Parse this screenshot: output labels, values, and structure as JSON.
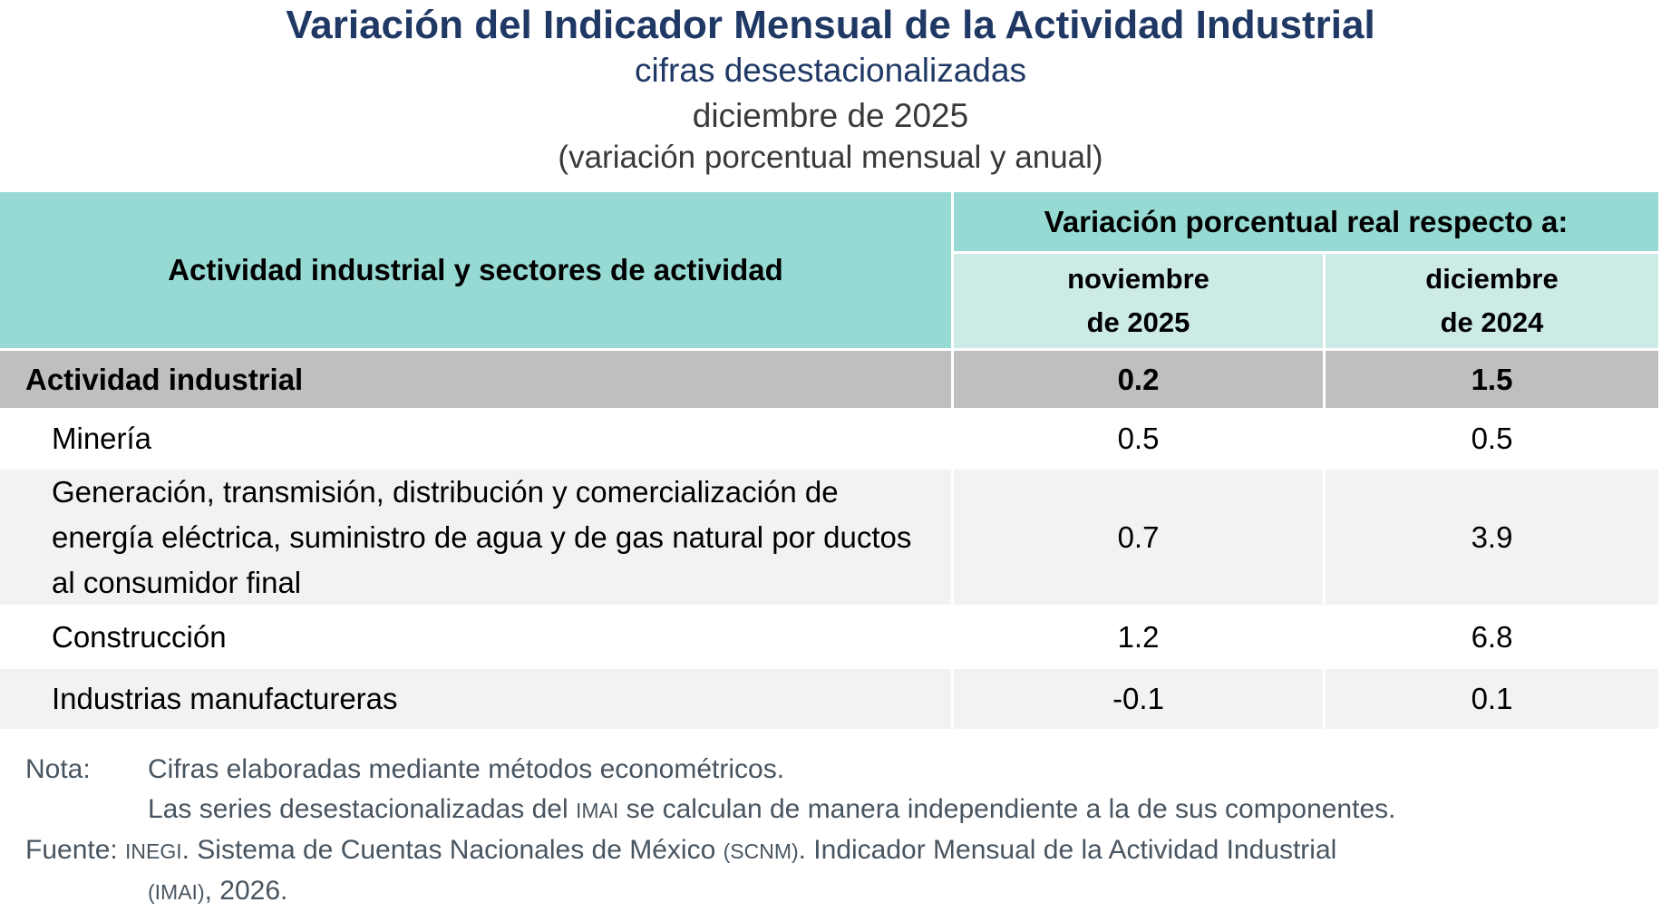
{
  "title": {
    "main": "Variación del Indicador Mensual de la Actividad Industrial",
    "subtitle": "cifras desestacionalizadas",
    "period": "diciembre de 2025",
    "measure": "(variación porcentual mensual y anual)"
  },
  "table": {
    "stub_header": "Actividad industrial y sectores de actividad",
    "group_header": "Variación porcentual real respecto a:",
    "col_headers": [
      {
        "line1": "noviembre",
        "line2": "de 2025"
      },
      {
        "line1": "diciembre",
        "line2": "de 2024"
      }
    ],
    "rows": [
      {
        "label": "Actividad industrial",
        "vs_prev_month": "0.2",
        "vs_prev_year": "1.5"
      },
      {
        "label": "Minería",
        "vs_prev_month": "0.5",
        "vs_prev_year": "0.5"
      },
      {
        "label": "Generación, transmisión, distribución y comercialización de energía eléctrica, suministro de agua y de gas natural por ductos al consumidor final",
        "vs_prev_month": "0.7",
        "vs_prev_year": "3.9"
      },
      {
        "label": "Construcción",
        "vs_prev_month": "1.2",
        "vs_prev_year": "6.8"
      },
      {
        "label": "Industrias manufactureras",
        "vs_prev_month": "-0.1",
        "vs_prev_year": "0.1"
      }
    ]
  },
  "notes": {
    "nota_label": "Nota:",
    "nota_line1": "Cifras elaboradas mediante métodos econométricos.",
    "nota_line2_segments": [
      "Las series desestacionalizadas del ",
      {
        "sc": "IMAI"
      },
      " se calculan de manera independiente a la de sus componentes."
    ],
    "fuente_label": "Fuente:",
    "fuente_line1_segments": [
      {
        "sc": "INEGI"
      },
      ". Sistema de Cuentas Nacionales de México ",
      {
        "sc": "(SCNM)"
      },
      ". Indicador Mensual de la Actividad Industrial"
    ],
    "fuente_line2_segments": [
      {
        "sc": "(IMAI)"
      },
      ", 2026."
    ]
  },
  "colors": {
    "title_navy": "#1F3864",
    "dark_text": "#3B3938",
    "header_teal": "#96DAD3",
    "subheader_teal": "#CCEBE7",
    "total_row_gray": "#BFBFBF",
    "zebra_row_gray": "#F2F2F2",
    "note_slate": "#485560"
  },
  "chart_data": {
    "type": "table",
    "title": "Variación del Indicador Mensual de la Actividad Industrial",
    "subtitle": "cifras desestacionalizadas, diciembre de 2025 (variación porcentual mensual y anual)",
    "columns": [
      "Actividad industrial y sectores de actividad",
      "noviembre de 2025",
      "diciembre de 2024"
    ],
    "rows": [
      [
        "Actividad industrial",
        0.2,
        1.5
      ],
      [
        "Minería",
        0.5,
        0.5
      ],
      [
        "Generación, transmisión, distribución y comercialización de energía eléctrica, suministro de agua y de gas natural por ductos al consumidor final",
        0.7,
        3.9
      ],
      [
        "Construcción",
        1.2,
        6.8
      ],
      [
        "Industrias manufactureras",
        -0.1,
        0.1
      ]
    ]
  }
}
